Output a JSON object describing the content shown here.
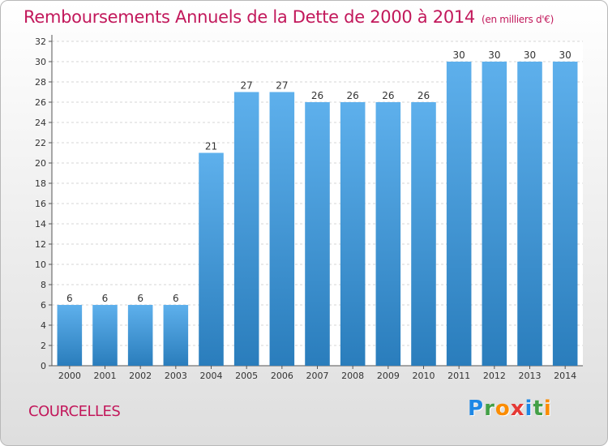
{
  "title": {
    "main": "Remboursements Annuels de la Dette de 2000 à 2014",
    "unit": "(en milliers d'€)"
  },
  "place": "COURCELLES",
  "brand": {
    "name": "Proxiti",
    "letters": [
      {
        "ch": "P",
        "color": "#1e88e5"
      },
      {
        "ch": "r",
        "color": "#43a047"
      },
      {
        "ch": "o",
        "color": "#fb8c00"
      },
      {
        "ch": "x",
        "color": "#e53935"
      },
      {
        "ch": "i",
        "color": "#1e88e5"
      },
      {
        "ch": "t",
        "color": "#43a047"
      },
      {
        "ch": "i",
        "color": "#fb8c00"
      }
    ]
  },
  "colors": {
    "bar_top": "#5eb0ec",
    "bar_bottom": "#2a7dbc",
    "title": "#c2185b",
    "grid": "#d6d6d6"
  },
  "chart_data": {
    "type": "bar",
    "title": "Remboursements Annuels de la Dette de 2000 à 2014",
    "xlabel": "",
    "ylabel": "",
    "categories": [
      "2000",
      "2001",
      "2002",
      "2003",
      "2004",
      "2005",
      "2006",
      "2007",
      "2008",
      "2009",
      "2010",
      "2011",
      "2012",
      "2013",
      "2014"
    ],
    "values": [
      6,
      6,
      6,
      6,
      21,
      27,
      27,
      26,
      26,
      26,
      26,
      30,
      30,
      30,
      30
    ],
    "ylim": [
      0,
      32
    ],
    "yticks": [
      0,
      2,
      4,
      6,
      8,
      10,
      12,
      14,
      16,
      18,
      20,
      22,
      24,
      26,
      28,
      30,
      32
    ],
    "grid": true,
    "data_labels": true
  }
}
